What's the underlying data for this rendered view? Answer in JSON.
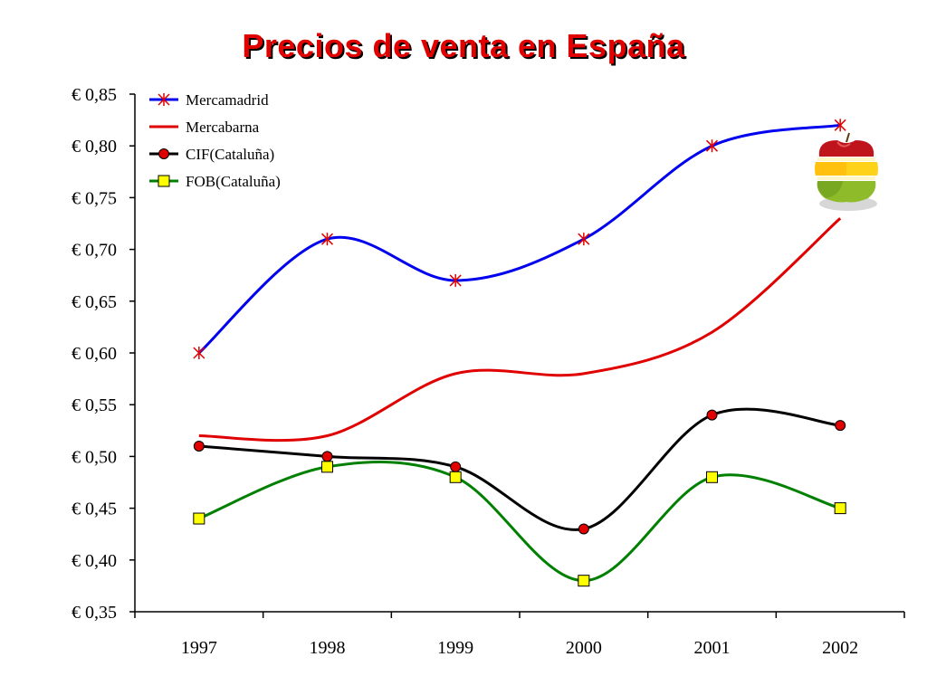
{
  "chart_data": {
    "type": "line",
    "title": "Precios de venta en España",
    "xlabel": "",
    "ylabel": "",
    "categories": [
      "1997",
      "1998",
      "1999",
      "2000",
      "2001",
      "2002"
    ],
    "ylim": [
      0.35,
      0.85
    ],
    "yticks": [
      0.35,
      0.4,
      0.45,
      0.5,
      0.55,
      0.6,
      0.65,
      0.7,
      0.75,
      0.8,
      0.85
    ],
    "ytick_labels": [
      "€ 0,35",
      "€ 0,40",
      "€ 0,45",
      "€ 0,50",
      "€ 0,55",
      "€ 0,60",
      "€ 0,65",
      "€ 0,70",
      "€ 0,75",
      "€ 0,80",
      "€ 0,85"
    ],
    "grid": false,
    "legend_position": "top-left",
    "series": [
      {
        "name": "Mercamadrid",
        "values": [
          0.6,
          0.71,
          0.67,
          0.71,
          0.8,
          0.82
        ],
        "color": "#0000ee",
        "marker": "asterisk",
        "marker_color": "#e00000"
      },
      {
        "name": "Mercabarna",
        "values": [
          0.52,
          0.52,
          0.58,
          0.58,
          0.62,
          0.73
        ],
        "color": "#e00000",
        "marker": "none"
      },
      {
        "name": "CIF(Cataluña)",
        "values": [
          0.51,
          0.5,
          0.49,
          0.43,
          0.54,
          0.53
        ],
        "color": "#000000",
        "marker": "circle",
        "marker_color": "#e00000"
      },
      {
        "name": "FOB(Cataluña)",
        "values": [
          0.44,
          0.49,
          0.48,
          0.38,
          0.48,
          0.45
        ],
        "color": "#008000",
        "marker": "square",
        "marker_color": "#ffff00"
      }
    ],
    "decoration": "sliced-apple-icon"
  }
}
